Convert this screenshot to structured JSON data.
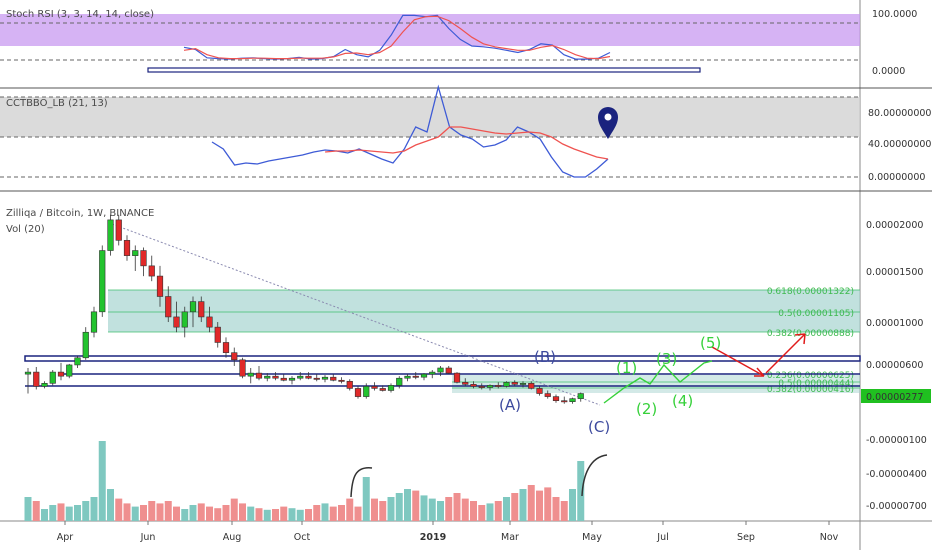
{
  "colors": {
    "up": "#26a69a",
    "down": "#ef5350",
    "green_candle": "#22c32e",
    "red_candle": "#e02929",
    "rsi_band": "#c89af0",
    "cct_band": "#d2d2d2",
    "navy": "#1a237e",
    "fib_box": "#a7d4d0",
    "wave_green": "#36d13a",
    "wave_blue": "#3d4a9e",
    "arrow_red": "#e01b1b",
    "price_tag": "#20c020"
  },
  "icons": {
    "marker": "map-pin-icon"
  },
  "panels": {
    "rsi": {
      "title": "Stoch RSI (3, 3, 14, 14, close)"
    },
    "cct": {
      "title": "CCTBBO_LB (21, 13)"
    },
    "main": {
      "title": "Zilliqa / Bitcoin, 1W, BINANCE",
      "vol_label": "Vol (20)"
    }
  },
  "price_tag": "0.00000277",
  "wave_labels": [
    "(A)",
    "(B)",
    "(C)",
    "(1)",
    "(2)",
    "(3)",
    "(4)",
    "(5)"
  ],
  "fib_labels": [
    "0.618(0.00001322)",
    "0.5(0.00001105)",
    "0.382(0.00000888)",
    "0.236(0.00000625)",
    "0.5(0.00000444)",
    "0.382(0.00000416)"
  ],
  "chart_data": [
    {
      "type": "line",
      "title": "Stoch RSI (3, 3, 14, 14, close)",
      "x_labels": [
        "Apr",
        "Jun",
        "Aug",
        "Oct",
        "2019",
        "Mar",
        "May",
        "Jul",
        "Sep",
        "Nov"
      ],
      "y_ticks": [
        "100.0000",
        "0.0000"
      ],
      "ylim": [
        -5,
        115
      ],
      "series": [
        {
          "color": "#3e5bd6",
          "values": [
            27,
            22,
            3,
            1,
            0,
            2,
            3,
            1,
            0,
            1,
            4,
            0,
            1,
            6,
            22,
            10,
            5,
            20,
            55,
            100,
            100,
            97,
            100,
            70,
            45,
            30,
            28,
            25,
            20,
            15,
            22,
            35,
            32,
            10,
            0,
            0,
            2,
            15
          ]
        },
        {
          "color": "#ef5350",
          "values": [
            20,
            24,
            10,
            3,
            1,
            1,
            2,
            2,
            1,
            1,
            2,
            2,
            2,
            5,
            13,
            14,
            10,
            15,
            30,
            62,
            90,
            97,
            98,
            88,
            70,
            50,
            35,
            28,
            24,
            20,
            20,
            27,
            31,
            22,
            10,
            2,
            1,
            6
          ]
        }
      ]
    },
    {
      "type": "line",
      "title": "CCTBBO_LB (21, 13)",
      "y_ticks": [
        "80.00000000",
        "40.00000000",
        "0.00000000"
      ],
      "ylim": [
        -10,
        100
      ],
      "series": [
        {
          "color": "#3e5bd6",
          "values": [
            35,
            28,
            12,
            14,
            13,
            16,
            18,
            20,
            22,
            25,
            27,
            26,
            24,
            28,
            23,
            18,
            14,
            28,
            50,
            45,
            90,
            50,
            42,
            38,
            30,
            32,
            37,
            50,
            45,
            38,
            20,
            5,
            0,
            0,
            8,
            18
          ]
        },
        {
          "color": "#ef5350",
          "values": [
            null,
            null,
            null,
            null,
            null,
            null,
            null,
            null,
            null,
            null,
            25,
            26,
            26,
            27,
            26,
            25,
            24,
            26,
            32,
            36,
            40,
            50,
            50,
            48,
            46,
            44,
            43,
            44,
            45,
            44,
            40,
            33,
            28,
            24,
            20,
            18
          ]
        }
      ]
    },
    {
      "type": "candlestick",
      "title": "Zilliqa / Bitcoin, 1W, BINANCE",
      "y_ticks": [
        "0.00002000",
        "0.00001500",
        "0.00001000",
        "0.00000600",
        "0.00000277",
        "-0.00000100",
        "-0.00000400",
        "-0.00000700"
      ],
      "ohlc_1e8": [
        [
          540,
          600,
          350,
          560
        ],
        [
          560,
          610,
          390,
          420
        ],
        [
          420,
          470,
          400,
          450
        ],
        [
          450,
          580,
          430,
          560
        ],
        [
          560,
          650,
          480,
          520
        ],
        [
          520,
          640,
          500,
          630
        ],
        [
          630,
          720,
          600,
          700
        ],
        [
          700,
          1000,
          680,
          950
        ],
        [
          950,
          1200,
          900,
          1150
        ],
        [
          1150,
          1800,
          1100,
          1750
        ],
        [
          1750,
          2100,
          1700,
          2050
        ],
        [
          2050,
          2100,
          1800,
          1850
        ],
        [
          1850,
          1900,
          1650,
          1700
        ],
        [
          1700,
          1800,
          1550,
          1750
        ],
        [
          1750,
          1780,
          1500,
          1600
        ],
        [
          1600,
          1700,
          1450,
          1500
        ],
        [
          1500,
          1600,
          1200,
          1300
        ],
        [
          1300,
          1400,
          1050,
          1100
        ],
        [
          1100,
          1250,
          950,
          1000
        ],
        [
          1000,
          1200,
          900,
          1150
        ],
        [
          1150,
          1300,
          1000,
          1250
        ],
        [
          1250,
          1300,
          1050,
          1100
        ],
        [
          1100,
          1200,
          950,
          1000
        ],
        [
          1000,
          1050,
          800,
          850
        ],
        [
          850,
          900,
          700,
          750
        ],
        [
          750,
          800,
          620,
          680
        ],
        [
          680,
          700,
          500,
          520
        ],
        [
          520,
          600,
          450,
          550
        ],
        [
          550,
          620,
          480,
          500
        ],
        [
          500,
          550,
          470,
          520
        ],
        [
          520,
          560,
          480,
          500
        ],
        [
          500,
          540,
          470,
          480
        ],
        [
          480,
          520,
          440,
          500
        ],
        [
          500,
          560,
          480,
          520
        ],
        [
          520,
          560,
          490,
          500
        ],
        [
          500,
          540,
          470,
          490
        ],
        [
          490,
          530,
          460,
          510
        ],
        [
          510,
          540,
          470,
          480
        ],
        [
          480,
          510,
          450,
          470
        ],
        [
          470,
          490,
          380,
          400
        ],
        [
          400,
          420,
          300,
          320
        ],
        [
          320,
          450,
          300,
          420
        ],
        [
          420,
          460,
          380,
          400
        ],
        [
          400,
          430,
          370,
          380
        ],
        [
          380,
          450,
          360,
          430
        ],
        [
          430,
          520,
          400,
          500
        ],
        [
          500,
          540,
          470,
          520
        ],
        [
          520,
          560,
          490,
          510
        ],
        [
          510,
          550,
          480,
          540
        ],
        [
          540,
          580,
          500,
          560
        ],
        [
          560,
          620,
          520,
          600
        ],
        [
          600,
          620,
          540,
          550
        ],
        [
          550,
          560,
          450,
          460
        ],
        [
          460,
          500,
          420,
          440
        ],
        [
          440,
          470,
          400,
          420
        ],
        [
          420,
          450,
          390,
          410
        ],
        [
          410,
          440,
          380,
          430
        ],
        [
          430,
          460,
          400,
          420
        ],
        [
          420,
          470,
          410,
          460
        ],
        [
          460,
          480,
          420,
          440
        ],
        [
          440,
          470,
          410,
          450
        ],
        [
          450,
          470,
          390,
          400
        ],
        [
          400,
          420,
          330,
          350
        ],
        [
          350,
          380,
          300,
          320
        ],
        [
          320,
          340,
          260,
          280
        ],
        [
          280,
          320,
          250,
          270
        ],
        [
          270,
          310,
          250,
          300
        ],
        [
          300,
          360,
          270,
          350
        ]
      ],
      "volume": [
        30,
        25,
        15,
        20,
        22,
        18,
        20,
        25,
        30,
        100,
        40,
        28,
        22,
        18,
        20,
        25,
        22,
        25,
        18,
        15,
        20,
        22,
        18,
        16,
        20,
        28,
        22,
        18,
        16,
        14,
        15,
        18,
        16,
        14,
        15,
        20,
        22,
        18,
        20,
        28,
        18,
        55,
        28,
        25,
        30,
        35,
        40,
        38,
        32,
        28,
        25,
        30,
        35,
        28,
        25,
        20,
        22,
        25,
        30,
        35,
        40,
        45,
        38,
        42,
        30,
        25,
        40,
        75
      ]
    }
  ]
}
